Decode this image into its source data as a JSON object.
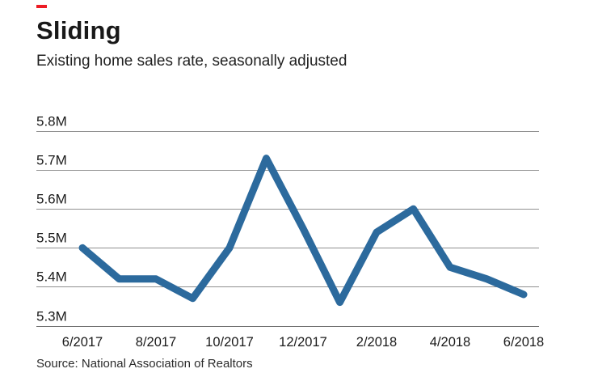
{
  "accent_color": "#ed1c24",
  "chart_data": {
    "type": "line",
    "title": "Sliding",
    "subtitle": "Existing home sales rate, seasonally adjusted",
    "source": "Source: National Association of Realtors",
    "x": [
      "6/2017",
      "7/2017",
      "8/2017",
      "9/2017",
      "10/2017",
      "11/2017",
      "12/2017",
      "1/2018",
      "2/2018",
      "3/2018",
      "4/2018",
      "5/2018",
      "6/2018"
    ],
    "values": [
      5.5,
      5.42,
      5.42,
      5.37,
      5.5,
      5.73,
      5.55,
      5.36,
      5.54,
      5.6,
      5.45,
      5.42,
      5.38
    ],
    "x_tick_labels": [
      "6/2017",
      "8/2017",
      "10/2017",
      "12/2017",
      "2/2018",
      "4/2018",
      "6/2018"
    ],
    "y_ticks": [
      {
        "label": "5.8M",
        "value": 5.8
      },
      {
        "label": "5.7M",
        "value": 5.7
      },
      {
        "label": "5.6M",
        "value": 5.6
      },
      {
        "label": "5.5M",
        "value": 5.5
      },
      {
        "label": "5.4M",
        "value": 5.4
      },
      {
        "label": "5.3M",
        "value": 5.3
      }
    ],
    "ylim": [
      5.3,
      5.8
    ],
    "unit": "M",
    "grid": true,
    "legend": "none",
    "line_color": "#2c6a9d",
    "grid_color": "#909090",
    "axis_color": "#707070"
  }
}
